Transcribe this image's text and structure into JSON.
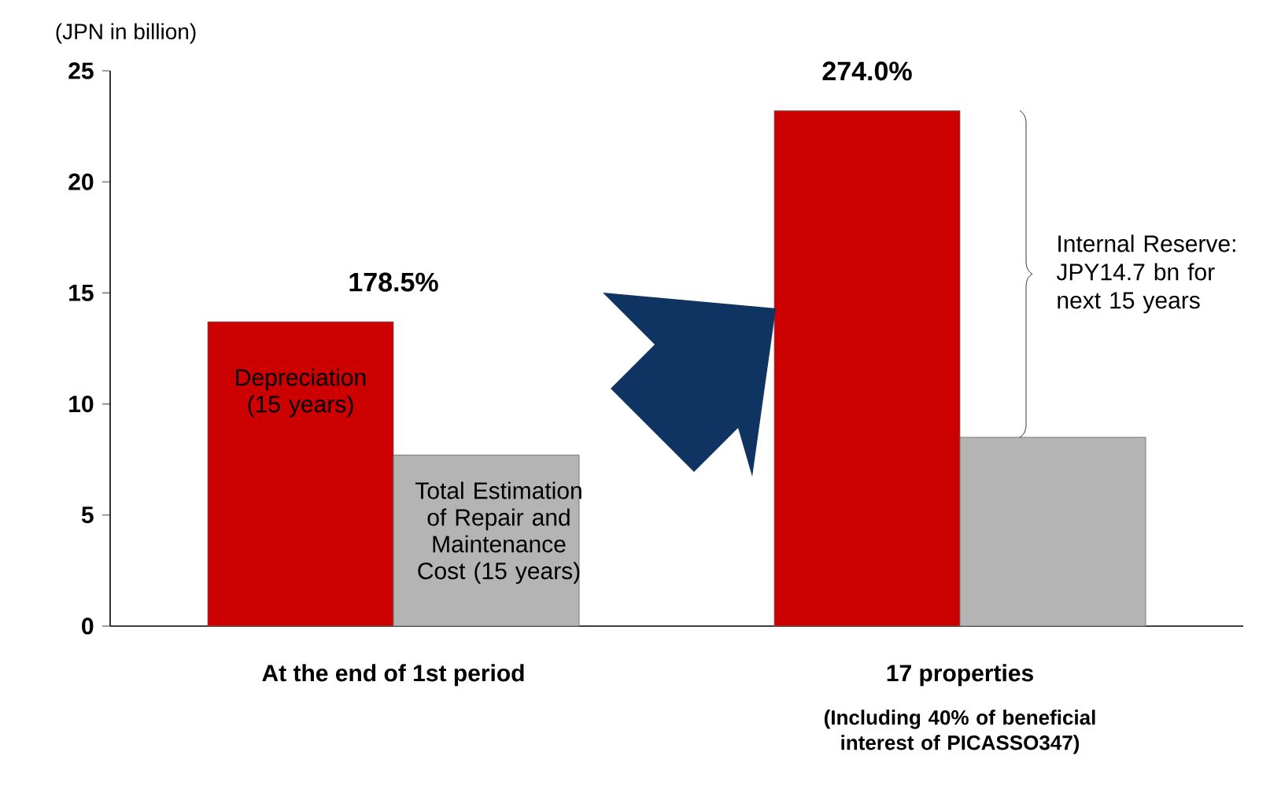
{
  "chart_data": {
    "type": "bar",
    "ylabel": "(JPN in billion)",
    "categories": [
      "At the end of 1st period",
      "17 properties"
    ],
    "series": [
      {
        "name": "Depreciation (15 years)",
        "color": "#cc0000",
        "values": [
          13.7,
          23.2
        ]
      },
      {
        "name": "Total Estimation of Repair and Maintenance Cost (15 years)",
        "color": "#b4b4b4",
        "values": [
          7.7,
          8.5
        ]
      }
    ],
    "ylim": [
      0,
      25
    ],
    "yticks": [
      0,
      5,
      10,
      15,
      20,
      25
    ],
    "annotations": [
      "178.5%",
      "274.0%",
      "Internal Reserve: JPY14.7 bn for next 15 years",
      "(Including 40% of beneficial interest of PICASSO347)"
    ]
  }
}
